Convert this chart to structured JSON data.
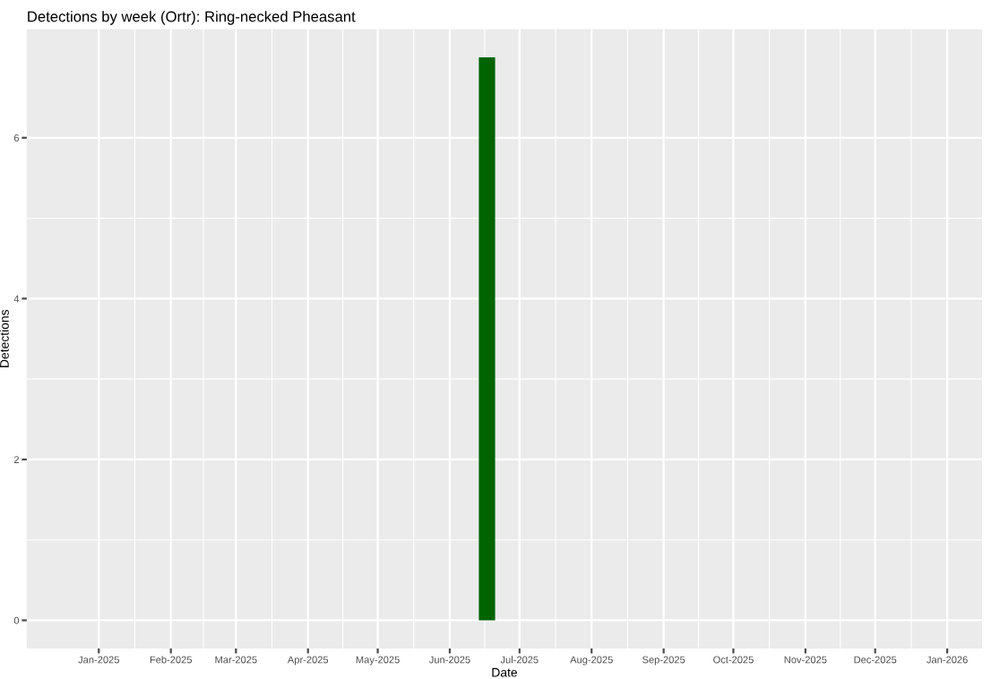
{
  "chart_data": {
    "type": "bar",
    "title": "Detections by week (Ortr): Ring-necked Pheasant",
    "xlabel": "Date",
    "ylabel": "Detections",
    "x": [
      "2025-06-17"
    ],
    "values": [
      7
    ],
    "color": "#006400",
    "xlim": [
      "2024-12-01",
      "2026-01-16"
    ],
    "xticks": [
      {
        "value": "2025-01-01",
        "label": "Jan-2025"
      },
      {
        "value": "2025-02-01",
        "label": "Feb-2025"
      },
      {
        "value": "2025-03-01",
        "label": "Mar-2025"
      },
      {
        "value": "2025-04-01",
        "label": "Apr-2025"
      },
      {
        "value": "2025-05-01",
        "label": "May-2025"
      },
      {
        "value": "2025-06-01",
        "label": "Jun-2025"
      },
      {
        "value": "2025-07-01",
        "label": "Jul-2025"
      },
      {
        "value": "2025-08-01",
        "label": "Aug-2025"
      },
      {
        "value": "2025-09-01",
        "label": "Sep-2025"
      },
      {
        "value": "2025-10-01",
        "label": "Oct-2025"
      },
      {
        "value": "2025-11-01",
        "label": "Nov-2025"
      },
      {
        "value": "2025-12-01",
        "label": "Dec-2025"
      },
      {
        "value": "2026-01-01",
        "label": "Jan-2026"
      }
    ],
    "ylim": [
      -0.35,
      7.35
    ],
    "yticks": [
      0,
      2,
      4,
      6
    ],
    "grid": true
  }
}
